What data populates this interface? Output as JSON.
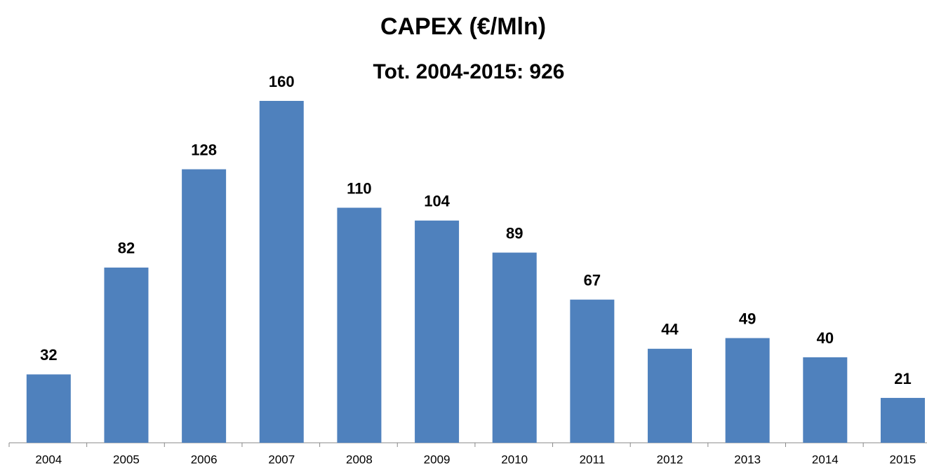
{
  "chart_data": {
    "type": "bar",
    "title": "CAPEX (€/Mln)",
    "subtitle": "Tot. 2004-2015: 926",
    "categories": [
      "2004",
      "2005",
      "2006",
      "2007",
      "2008",
      "2009",
      "2010",
      "2011",
      "2012",
      "2013",
      "2014",
      "2015"
    ],
    "values": [
      32,
      82,
      128,
      160,
      110,
      104,
      89,
      67,
      44,
      49,
      40,
      21
    ],
    "color": "#4f81bd"
  }
}
